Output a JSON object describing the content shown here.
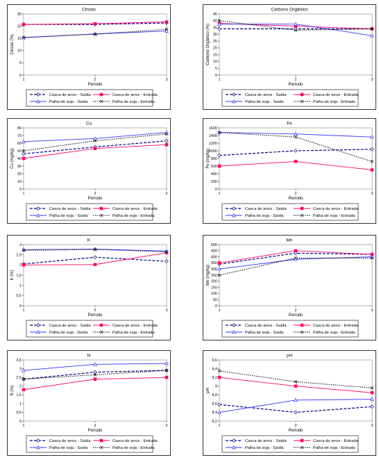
{
  "chart_data": [
    {
      "type": "line",
      "title": "Cinzas",
      "xlabel": "Período",
      "ylabel": "Cinzas (%)",
      "x": [
        1,
        2,
        3
      ],
      "xticks": [
        "1",
        "2",
        "3"
      ],
      "ylim": [
        0,
        25
      ],
      "yticks": [
        "0",
        "5",
        "10",
        "15",
        "20",
        "25"
      ],
      "series": [
        {
          "name": "Casca de arroz - Saída",
          "values": [
            20.7,
            20.7,
            21.3
          ]
        },
        {
          "name": "Casca de arroz - Entrada",
          "values": [
            20.7,
            21.0,
            21.7
          ]
        },
        {
          "name": "Palha de soja - Saída",
          "values": [
            15.3,
            16.8,
            18.0
          ]
        },
        {
          "name": "Palha de soja - Entrada",
          "values": [
            15.4,
            16.7,
            18.7
          ]
        }
      ]
    },
    {
      "type": "line",
      "title": "Carbono Orgânico",
      "xlabel": "Período",
      "ylabel": "Carbono Orgânico (%)",
      "x": [
        1,
        2,
        3
      ],
      "xticks": [
        "1",
        "2",
        "3"
      ],
      "ylim": [
        0,
        45
      ],
      "yticks": [
        "0",
        "5",
        "10",
        "15",
        "20",
        "25",
        "30",
        "35",
        "40",
        "45"
      ],
      "series": [
        {
          "name": "Casca de arroz - Saída",
          "values": [
            34,
            34,
            34
          ]
        },
        {
          "name": "Casca de arroz - Entrada",
          "values": [
            38,
            36,
            34
          ]
        },
        {
          "name": "Palha de soja - Saída",
          "values": [
            37.5,
            37.5,
            29
          ]
        },
        {
          "name": "Palha de soja - Entrada",
          "values": [
            40,
            33,
            34
          ]
        }
      ]
    },
    {
      "type": "line",
      "title": "Cu",
      "xlabel": "Período",
      "ylabel": "Cu (mg/kg)",
      "x": [
        1,
        2,
        3
      ],
      "xticks": [
        "1",
        "2",
        "3"
      ],
      "ylim": [
        0,
        80
      ],
      "yticks": [
        "0",
        "10",
        "20",
        "30",
        "40",
        "50",
        "60",
        "70",
        "80"
      ],
      "series": [
        {
          "name": "Casca de arroz - Saída",
          "values": [
            46,
            55,
            63
          ]
        },
        {
          "name": "Casca de arroz - Entrada",
          "values": [
            40,
            53,
            58
          ]
        },
        {
          "name": "Palha de soja - Saída",
          "values": [
            62,
            66,
            74
          ]
        },
        {
          "name": "Palha de soja - Entrada",
          "values": [
            50,
            63,
            72
          ]
        }
      ]
    },
    {
      "type": "line",
      "title": "Fe",
      "xlabel": "Período",
      "ylabel": "Fe (mg/kg)",
      "x": [
        1,
        2,
        3
      ],
      "xticks": [
        "1",
        "2",
        "3"
      ],
      "ylim": [
        0,
        1600
      ],
      "yticks": [
        "0",
        "200",
        "400",
        "600",
        "800",
        "1000",
        "1200",
        "1400",
        "1600"
      ],
      "series": [
        {
          "name": "Casca de arroz - Saída",
          "values": [
            880,
            1000,
            1040
          ]
        },
        {
          "name": "Casca de arroz - Entrada",
          "values": [
            600,
            720,
            500
          ]
        },
        {
          "name": "Palha de soja - Saída",
          "values": [
            1480,
            1440,
            1360
          ]
        },
        {
          "name": "Palha de soja - Entrada",
          "values": [
            1480,
            1360,
            720
          ]
        }
      ]
    },
    {
      "type": "line",
      "title": "K",
      "xlabel": "Período",
      "ylabel": "K (%)",
      "x": [
        1,
        2,
        3
      ],
      "xticks": [
        "1",
        "2",
        "3"
      ],
      "ylim": [
        0,
        3
      ],
      "yticks": [
        "0",
        "0,5",
        "1",
        "1,5",
        "2",
        "2,5",
        "3"
      ],
      "series": [
        {
          "name": "Casca de arroz - Saída",
          "values": [
            2.05,
            2.38,
            2.18
          ]
        },
        {
          "name": "Casca de arroz - Entrada",
          "values": [
            2.0,
            2.02,
            2.6
          ]
        },
        {
          "name": "Palha de soja - Saída",
          "values": [
            2.75,
            2.78,
            2.68
          ]
        },
        {
          "name": "Palha de soja - Entrada",
          "values": [
            2.72,
            2.76,
            2.65
          ]
        }
      ]
    },
    {
      "type": "line",
      "title": "Mn",
      "xlabel": "Período",
      "ylabel": "Mn (mg/kg)",
      "x": [
        1,
        2,
        3
      ],
      "xticks": [
        "1",
        "2",
        "3"
      ],
      "ylim": [
        0,
        500
      ],
      "yticks": [
        "0",
        "50",
        "100",
        "150",
        "200",
        "250",
        "300",
        "350",
        "400",
        "450",
        "500"
      ],
      "series": [
        {
          "name": "Casca de arroz - Saída",
          "values": [
            340,
            430,
            420
          ]
        },
        {
          "name": "Casca de arroz - Entrada",
          "values": [
            350,
            450,
            420
          ]
        },
        {
          "name": "Palha de soja - Saída",
          "values": [
            300,
            380,
            400
          ]
        },
        {
          "name": "Palha de soja - Entrada",
          "values": [
            250,
            390,
            390
          ]
        }
      ]
    },
    {
      "type": "line",
      "title": "N",
      "xlabel": "Período",
      "ylabel": "N (%)",
      "x": [
        1,
        2,
        3
      ],
      "xticks": [
        "1",
        "2",
        "3"
      ],
      "ylim": [
        0,
        3.5
      ],
      "yticks": [
        "0",
        "0,5",
        "1",
        "1,5",
        "2",
        "2,5",
        "3",
        "3,5"
      ],
      "series": [
        {
          "name": "Casca de arroz - Saída",
          "values": [
            2.4,
            2.8,
            2.9
          ]
        },
        {
          "name": "Casca de arroz - Entrada",
          "values": [
            1.8,
            2.4,
            2.5
          ]
        },
        {
          "name": "Palha de soja - Saída",
          "values": [
            2.9,
            3.25,
            3.3
          ]
        },
        {
          "name": "Palha de soja - Entrada",
          "values": [
            2.4,
            2.65,
            2.9
          ]
        }
      ]
    },
    {
      "type": "line",
      "title": "pH",
      "xlabel": "Período",
      "ylabel": "pH",
      "x": [
        1,
        2,
        3
      ],
      "xticks": [
        "1",
        "2",
        "3"
      ],
      "ylim": [
        8.2,
        9.6
      ],
      "yticks": [
        "8,2",
        "8,4",
        "8,6",
        "8,8",
        "9",
        "9,2",
        "9,4",
        "9,6"
      ],
      "series": [
        {
          "name": "Casca de arroz - Saída",
          "values": [
            8.58,
            8.4,
            8.53
          ]
        },
        {
          "name": "Casca de arroz - Entrada",
          "values": [
            9.2,
            9.0,
            8.85
          ]
        },
        {
          "name": "Palha de soja - Saída",
          "values": [
            8.4,
            8.68,
            8.7
          ]
        },
        {
          "name": "Palha de soja - Entrada",
          "values": [
            9.35,
            9.1,
            8.96
          ]
        }
      ]
    }
  ],
  "series_styles": [
    {
      "color": "#000080",
      "dash": "4,2",
      "marker": "diamond-open",
      "width": 1.2
    },
    {
      "color": "#ff0066",
      "dash": "",
      "marker": "square",
      "width": 0.9
    },
    {
      "color": "#3333ff",
      "dash": "",
      "marker": "triangle-open",
      "width": 0.9
    },
    {
      "color": "#000000",
      "dash": "1.2,1.6",
      "marker": "x",
      "width": 1.2
    }
  ]
}
